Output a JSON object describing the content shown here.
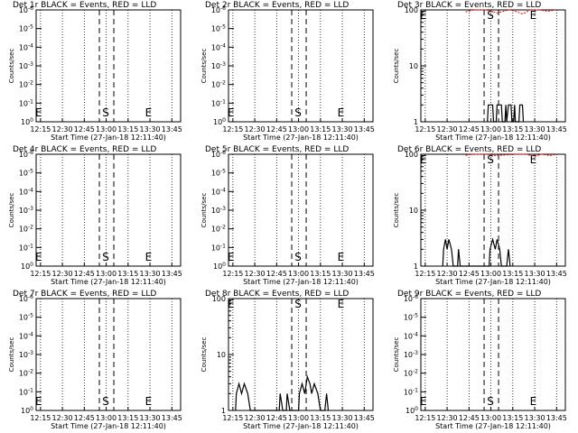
{
  "chart_data": [
    {
      "type": "line",
      "title": "Det 1r BLACK = Events, RED = LLD",
      "xlabel": "Start Time (27-Jan-18 12:11:40)",
      "ylabel": "Counts/sec",
      "x_ticks": [
        "12:15",
        "12:30",
        "12:45",
        "13:00",
        "13:15",
        "13:30",
        "13:45"
      ],
      "y_scale": "log",
      "y_ticks": [
        "10^0",
        "10^-1",
        "10^-2",
        "10^-3",
        "10^-4",
        "10^-5",
        "10^-6"
      ],
      "markers": {
        "S": "13:04",
        "E": "13:29"
      },
      "series": [
        {
          "name": "Events",
          "color": "#000000",
          "values": []
        },
        {
          "name": "LLD",
          "color": "#ff0000",
          "values": []
        }
      ]
    },
    {
      "type": "line",
      "title": "Det 2r BLACK = Events, RED = LLD",
      "xlabel": "Start Time (27-Jan-18 12:11:40)",
      "ylabel": "Counts/sec",
      "x_ticks": [
        "12:15",
        "12:30",
        "12:45",
        "13:00",
        "13:15",
        "13:30",
        "13:45"
      ],
      "y_scale": "log",
      "y_ticks": [
        "10^0",
        "10^-1",
        "10^-2",
        "10^-3",
        "10^-4",
        "10^-5",
        "10^-6"
      ],
      "markers": {
        "S": "13:04",
        "E": "13:29"
      },
      "series": [
        {
          "name": "Events",
          "color": "#000000",
          "values": []
        },
        {
          "name": "LLD",
          "color": "#ff0000",
          "values": []
        }
      ]
    },
    {
      "type": "line",
      "title": "Det 3r BLACK = Events, RED = LLD",
      "xlabel": "Start Time (27-Jan-18 12:11:40)",
      "ylabel": "Counts/sec",
      "x_ticks": [
        "12:15",
        "12:30",
        "12:45",
        "13:00",
        "13:15",
        "13:30",
        "13:45"
      ],
      "y_scale": "log",
      "y_ticks": [
        "1",
        "10",
        "100"
      ],
      "ylim": [
        1,
        100
      ],
      "markers": {
        "S": "13:04",
        "E": "13:29"
      },
      "series": [
        {
          "name": "Events",
          "color": "#000000",
          "points": [
            [
              12.96,
              1
            ],
            [
              12.97,
              2
            ],
            [
              13.02,
              2
            ],
            [
              13.03,
              1
            ],
            [
              13.06,
              1
            ],
            [
              13.07,
              2
            ],
            [
              13.12,
              2
            ],
            [
              13.13,
              1
            ],
            [
              13.16,
              1
            ],
            [
              13.17,
              2
            ],
            [
              13.18,
              1
            ],
            [
              13.2,
              2
            ],
            [
              13.23,
              2
            ],
            [
              13.24,
              1
            ],
            [
              13.26,
              1
            ],
            [
              13.27,
              2
            ],
            [
              13.28,
              1
            ],
            [
              13.32,
              1
            ],
            [
              13.33,
              2
            ],
            [
              13.36,
              2
            ],
            [
              13.37,
              1
            ]
          ]
        },
        {
          "name": "LLD",
          "color": "#ff0000",
          "points": [
            [
              12.71,
              92
            ],
            [
              12.8,
              100
            ],
            [
              12.95,
              100
            ],
            [
              13.07,
              88
            ],
            [
              13.2,
              100
            ],
            [
              13.28,
              95
            ],
            [
              13.36,
              85
            ],
            [
              13.45,
              100
            ],
            [
              13.55,
              100
            ],
            [
              13.65,
              95
            ],
            [
              13.75,
              100
            ]
          ]
        }
      ]
    },
    {
      "type": "line",
      "title": "Det 4r BLACK = Events, RED = LLD",
      "xlabel": "Start Time (27-Jan-18 12:11:40)",
      "ylabel": "Counts/sec",
      "x_ticks": [
        "12:15",
        "12:30",
        "12:45",
        "13:00",
        "13:15",
        "13:30",
        "13:45"
      ],
      "y_scale": "log",
      "y_ticks": [
        "10^0",
        "10^-1",
        "10^-2",
        "10^-3",
        "10^-4",
        "10^-5",
        "10^-6"
      ],
      "markers": {
        "S": "13:04",
        "E": "13:29"
      },
      "series": [
        {
          "name": "Events",
          "color": "#000000",
          "values": []
        },
        {
          "name": "LLD",
          "color": "#ff0000",
          "values": []
        }
      ]
    },
    {
      "type": "line",
      "title": "Det 5r BLACK = Events, RED = LLD",
      "xlabel": "Start Time (27-Jan-18 12:11:40)",
      "ylabel": "Counts/sec",
      "x_ticks": [
        "12:15",
        "12:30",
        "12:45",
        "13:00",
        "13:15",
        "13:30",
        "13:45"
      ],
      "y_scale": "log",
      "y_ticks": [
        "10^0",
        "10^-1",
        "10^-2",
        "10^-3",
        "10^-4",
        "10^-5",
        "10^-6"
      ],
      "markers": {
        "S": "13:04",
        "E": "13:29"
      },
      "series": [
        {
          "name": "Events",
          "color": "#000000",
          "values": []
        },
        {
          "name": "LLD",
          "color": "#ff0000",
          "values": []
        }
      ]
    },
    {
      "type": "line",
      "title": "Det 6r BLACK = Events, RED = LLD",
      "xlabel": "Start Time (27-Jan-18 12:11:40)",
      "ylabel": "Counts/sec",
      "x_ticks": [
        "12:15",
        "12:30",
        "12:45",
        "13:00",
        "13:15",
        "13:30",
        "13:45"
      ],
      "y_scale": "log",
      "y_ticks": [
        "1",
        "10",
        "100"
      ],
      "ylim": [
        1,
        100
      ],
      "markers": {
        "S": "13:04",
        "E": "13:29"
      },
      "series": [
        {
          "name": "Events",
          "color": "#000000",
          "points": [
            [
              12.45,
              1
            ],
            [
              12.46,
              2
            ],
            [
              12.48,
              3
            ],
            [
              12.5,
              2
            ],
            [
              12.52,
              3
            ],
            [
              12.55,
              2
            ],
            [
              12.57,
              1
            ],
            [
              12.62,
              1
            ],
            [
              12.63,
              2
            ],
            [
              12.65,
              1
            ],
            [
              12.98,
              1
            ],
            [
              12.99,
              2
            ],
            [
              13.02,
              3
            ],
            [
              13.05,
              2
            ],
            [
              13.07,
              3
            ],
            [
              13.1,
              2
            ],
            [
              13.12,
              1
            ],
            [
              13.18,
              1
            ],
            [
              13.2,
              2
            ],
            [
              13.22,
              1
            ]
          ]
        },
        {
          "name": "LLD",
          "color": "#ff0000",
          "points": [
            [
              12.71,
              96
            ],
            [
              12.8,
              100
            ],
            [
              12.95,
              100
            ],
            [
              13.05,
              95
            ],
            [
              13.3,
              100
            ],
            [
              13.4,
              100
            ],
            [
              13.5,
              92
            ],
            [
              13.58,
              100
            ],
            [
              13.68,
              95
            ],
            [
              13.75,
              100
            ]
          ]
        }
      ]
    },
    {
      "type": "line",
      "title": "Det 7r BLACK = Events, RED = LLD",
      "xlabel": "Start Time (27-Jan-18 12:11:40)",
      "ylabel": "Counts/sec",
      "x_ticks": [
        "12:15",
        "12:30",
        "12:45",
        "13:00",
        "13:15",
        "13:30",
        "13:45"
      ],
      "y_scale": "log",
      "y_ticks": [
        "10^0",
        "10^-1",
        "10^-2",
        "10^-3",
        "10^-4",
        "10^-5",
        "10^-6"
      ],
      "markers": {
        "S": "13:04",
        "E": "13:29"
      },
      "series": [
        {
          "name": "Events",
          "color": "#000000",
          "values": []
        },
        {
          "name": "LLD",
          "color": "#ff0000",
          "values": []
        }
      ]
    },
    {
      "type": "line",
      "title": "Det 8r BLACK = Events, RED = LLD",
      "xlabel": "Start Time (27-Jan-18 12:11:40)",
      "ylabel": "Counts/sec",
      "x_ticks": [
        "12:15",
        "12:30",
        "12:45",
        "13:00",
        "13:15",
        "13:30",
        "13:45"
      ],
      "y_scale": "log",
      "y_ticks": [
        "1",
        "10",
        "100"
      ],
      "ylim": [
        1,
        100
      ],
      "markers": {
        "S": "13:04",
        "E": "13:29"
      },
      "series": [
        {
          "name": "Events",
          "color": "#000000",
          "points": [
            [
              12.28,
              1
            ],
            [
              12.29,
              2
            ],
            [
              12.32,
              3
            ],
            [
              12.35,
              2
            ],
            [
              12.38,
              3
            ],
            [
              12.42,
              2
            ],
            [
              12.45,
              1
            ],
            [
              12.78,
              1
            ],
            [
              12.79,
              2
            ],
            [
              12.82,
              1
            ],
            [
              12.86,
              1
            ],
            [
              12.87,
              2
            ],
            [
              12.9,
              1
            ],
            [
              13.0,
              1
            ],
            [
              13.01,
              2
            ],
            [
              13.04,
              3
            ],
            [
              13.07,
              2
            ],
            [
              13.1,
              4
            ],
            [
              13.13,
              3
            ],
            [
              13.15,
              2
            ],
            [
              13.18,
              3
            ],
            [
              13.22,
              2
            ],
            [
              13.25,
              1
            ],
            [
              13.3,
              1
            ],
            [
              13.32,
              2
            ],
            [
              13.34,
              1
            ]
          ]
        },
        {
          "name": "LLD",
          "color": "#ff0000",
          "points": []
        }
      ]
    },
    {
      "type": "line",
      "title": "Det 9r BLACK = Events, RED = LLD",
      "xlabel": "Start Time (27-Jan-18 12:11:40)",
      "ylabel": "Counts/sec",
      "x_ticks": [
        "12:15",
        "12:30",
        "12:45",
        "13:00",
        "13:15",
        "13:30",
        "13:45"
      ],
      "y_scale": "log",
      "y_ticks": [
        "10^0",
        "10^-1",
        "10^-2",
        "10^-3",
        "10^-4",
        "10^-5",
        "10^-6"
      ],
      "markers": {
        "S": "13:04",
        "E": "13:29"
      },
      "series": [
        {
          "name": "Events",
          "color": "#000000",
          "values": []
        },
        {
          "name": "LLD",
          "color": "#ff0000",
          "values": []
        }
      ]
    }
  ]
}
